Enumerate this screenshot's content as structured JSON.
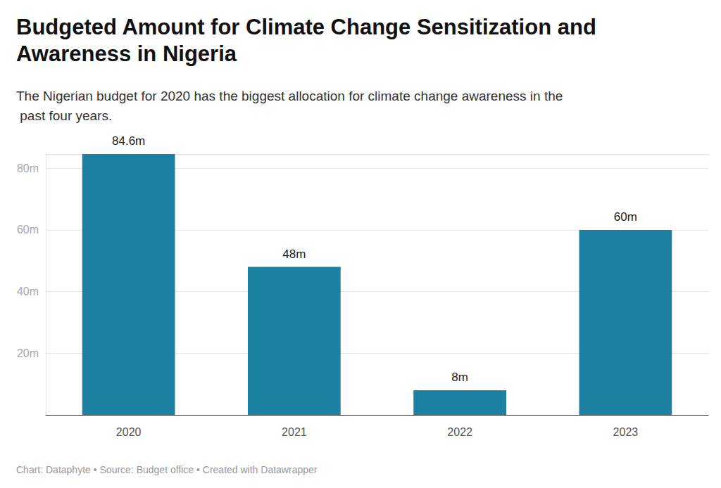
{
  "chart_data": {
    "type": "bar",
    "title": "Budgeted Amount for Climate Change Sensitization and Awareness in Nigeria",
    "subtitle": "The Nigerian budget for 2020 has the biggest allocation for climate change awareness in the past four years.",
    "source": "Chart: Dataphyte • Source: Budget office • Created with Datawrapper",
    "categories": [
      "2020",
      "2021",
      "2022",
      "2023"
    ],
    "values": [
      84.6,
      48,
      8,
      60
    ],
    "value_labels": [
      "84.6m",
      "48m",
      "8m",
      "60m"
    ],
    "data_labels": true,
    "color": "#1d81a2",
    "ylim": [
      0,
      84.6
    ],
    "yticks": [
      {
        "value": 20,
        "label": "20m"
      },
      {
        "value": 40,
        "label": "40m"
      },
      {
        "value": 60,
        "label": "60m"
      },
      {
        "value": 80,
        "label": "80m"
      }
    ],
    "grid": true
  }
}
